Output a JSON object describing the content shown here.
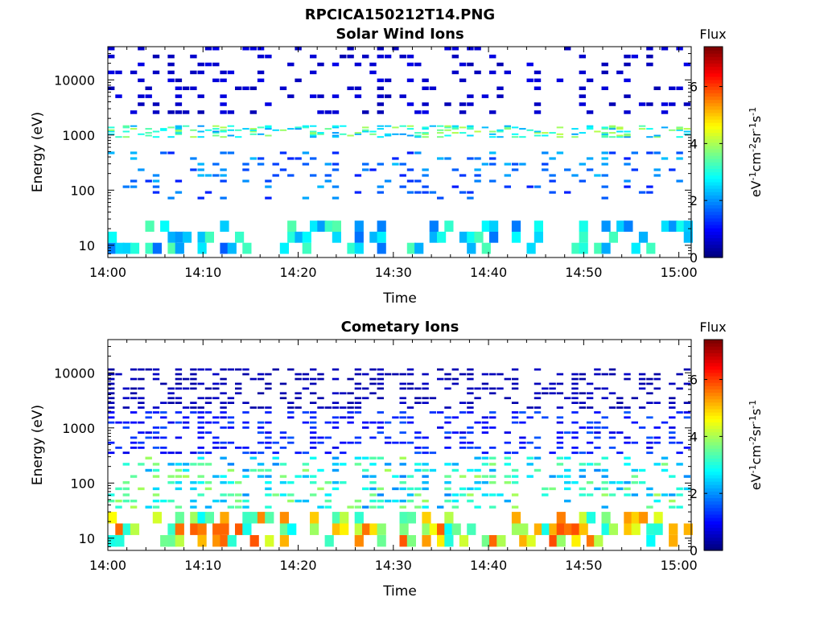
{
  "figure_title": "RPCICA150212T14.PNG",
  "chart_data": [
    {
      "type": "heatmap",
      "title": "Solar Wind Ions",
      "xlabel": "Time",
      "ylabel": "Energy (eV)",
      "x_ticks": [
        "14:00",
        "14:10",
        "14:20",
        "14:30",
        "14:40",
        "14:50",
        "15:00"
      ],
      "x_range_minutes": [
        0,
        61.3
      ],
      "y_scale": "log",
      "y_range": [
        6,
        40000
      ],
      "y_ticks": [
        "10",
        "100",
        "1000",
        "10000"
      ],
      "y_tick_values": [
        10,
        100,
        1000,
        10000
      ],
      "colorbar": {
        "label": "Flux",
        "unit": "eV-1cm-2sr-1s-1",
        "ticks": [
          "0",
          "2",
          "4",
          "6"
        ],
        "range": [
          0,
          7.4
        ],
        "colormap": "jet"
      },
      "mean_intensity": 0.35,
      "bands": [
        {
          "e_min": 7,
          "e_max": 28,
          "flux": 2.6
        },
        {
          "e_min": 60,
          "e_max": 500,
          "flux": 1.8
        },
        {
          "e_min": 900,
          "e_max": 1500,
          "flux": 3.2
        },
        {
          "e_min": 2000,
          "e_max": 40000,
          "flux": 0.6
        }
      ]
    },
    {
      "type": "heatmap",
      "title": "Cometary Ions",
      "xlabel": "Time",
      "ylabel": "Energy (eV)",
      "x_ticks": [
        "14:00",
        "14:10",
        "14:20",
        "14:30",
        "14:40",
        "14:50",
        "15:00"
      ],
      "x_range_minutes": [
        0,
        61.3
      ],
      "y_scale": "log",
      "y_range": [
        6,
        40000
      ],
      "y_ticks": [
        "10",
        "100",
        "1000",
        "10000"
      ],
      "y_tick_values": [
        10,
        100,
        1000,
        10000
      ],
      "colorbar": {
        "label": "Flux",
        "unit": "eV-1cm-2sr-1s-1",
        "ticks": [
          "0",
          "2",
          "4",
          "6"
        ],
        "range": [
          0,
          7.4
        ],
        "colormap": "jet"
      },
      "mean_intensity": 0.55,
      "bands": [
        {
          "e_min": 7,
          "e_max": 30,
          "flux": 4.6
        },
        {
          "e_min": 30,
          "e_max": 300,
          "flux": 3.1
        },
        {
          "e_min": 300,
          "e_max": 2000,
          "flux": 1.2
        },
        {
          "e_min": 2000,
          "e_max": 12000,
          "flux": 0.4
        }
      ]
    }
  ]
}
